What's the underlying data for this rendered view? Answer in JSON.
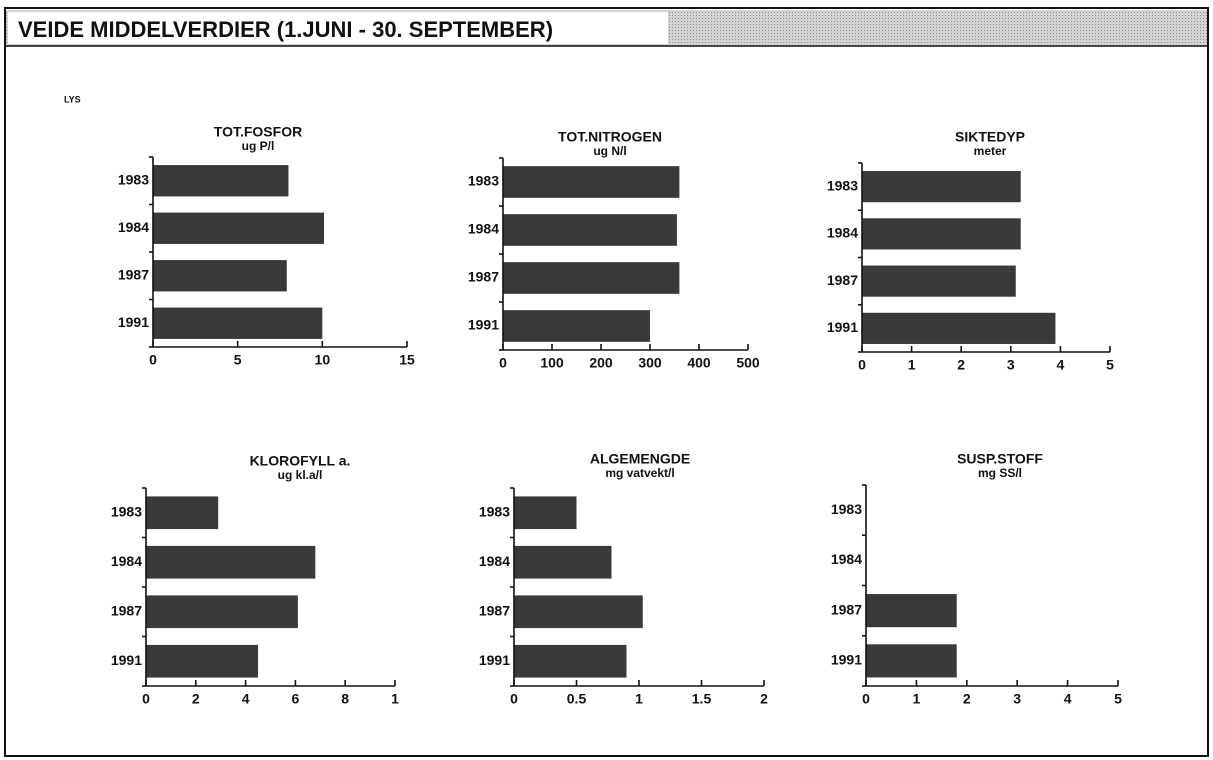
{
  "header": {
    "title": "VEIDE MIDDELVERDIER (1.JUNI - 30. SEPTEMBER)",
    "label": "LYS"
  },
  "chart_data": [
    {
      "type": "bar",
      "orientation": "horizontal",
      "title": "TOT.FOSFOR",
      "subtitle": "ug P/l",
      "categories": [
        "1983",
        "1984",
        "1987",
        "1991"
      ],
      "values": [
        8.0,
        10.1,
        7.9,
        10.0
      ],
      "color": "#3a3a3a",
      "xlim": [
        0,
        15
      ],
      "xticks": [
        0,
        5,
        10,
        15
      ]
    },
    {
      "type": "bar",
      "orientation": "horizontal",
      "title": "TOT.NITROGEN",
      "subtitle": "ug N/l",
      "categories": [
        "1983",
        "1984",
        "1987",
        "1991"
      ],
      "values": [
        360,
        355,
        360,
        300
      ],
      "color": "#3a3a3a",
      "xlim": [
        0,
        500
      ],
      "xticks": [
        0,
        100,
        200,
        300,
        400,
        500
      ]
    },
    {
      "type": "bar",
      "orientation": "horizontal",
      "title": "SIKTEDYP",
      "subtitle": "meter",
      "categories": [
        "1983",
        "1984",
        "1987",
        "1991"
      ],
      "values": [
        3.2,
        3.2,
        3.1,
        3.9
      ],
      "color": "#3a3a3a",
      "xlim": [
        0,
        5
      ],
      "xticks": [
        0,
        1,
        2,
        3,
        4,
        5
      ]
    },
    {
      "type": "bar",
      "orientation": "horizontal",
      "title": "KLOROFYLL a.",
      "subtitle": "ug kl.a/l",
      "categories": [
        "1983",
        "1984",
        "1987",
        "1991"
      ],
      "values": [
        2.9,
        6.8,
        6.1,
        4.5
      ],
      "color": "#3a3a3a",
      "xlim": [
        0,
        10
      ],
      "xticks": [
        0,
        2,
        4,
        6,
        8,
        {
          "value": 10,
          "label": "1"
        }
      ]
    },
    {
      "type": "bar",
      "orientation": "horizontal",
      "title": "ALGEMENGDE",
      "subtitle": "mg vatvekt/l",
      "categories": [
        "1983",
        "1984",
        "1987",
        "1991"
      ],
      "values": [
        0.5,
        0.78,
        1.03,
        0.9
      ],
      "color": "#3a3a3a",
      "xlim": [
        0,
        2
      ],
      "xticks": [
        0,
        0.5,
        1,
        1.5,
        2
      ]
    },
    {
      "type": "bar",
      "orientation": "horizontal",
      "title": "SUSP.STOFF",
      "subtitle": "mg SS/l",
      "categories": [
        "1983",
        "1984",
        "1987",
        "1991"
      ],
      "values": [
        null,
        null,
        1.8,
        1.8
      ],
      "color": "#3a3a3a",
      "xlim": [
        0,
        5
      ],
      "xticks": [
        0,
        1,
        2,
        3,
        4,
        5
      ]
    }
  ]
}
